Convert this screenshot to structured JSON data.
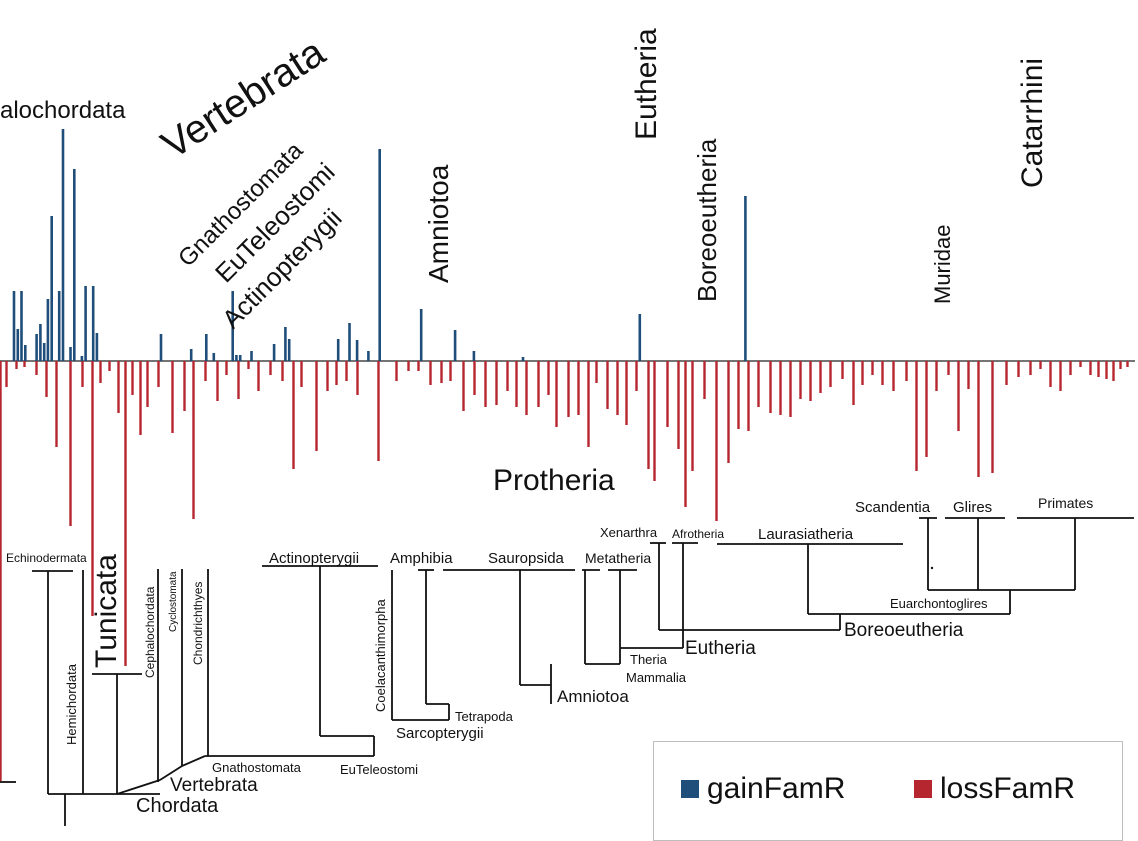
{
  "colors": {
    "gain": "#1f4e7a",
    "loss": "#b5262f",
    "tree": "#111111"
  },
  "legend": {
    "gain_label": "gainFamR",
    "loss_label": "lossFamR"
  },
  "bar_labels": [
    "alochordata",
    "Vertebrata",
    "Gnathostomata",
    "EuTeleostomi",
    "Actinopterygii",
    "Amniotoa",
    "Eutheria",
    "Boreoeutheria",
    "Muridae",
    "Catarrhini",
    "Protheria"
  ],
  "tree_labels": [
    "Echinodermata",
    "Hemichordata",
    "Tunicata",
    "Cephalochordata",
    "Cyclostomata",
    "Chondrichthyes",
    "Gnathostomata",
    "Vertebrata",
    "Chordata",
    "Actinopterygii",
    "Coelacanthimorpha",
    "EuTeleostomi",
    "Sarcopterygii",
    "Amphibia",
    "Tetrapoda",
    "Sauropsida",
    "Amniotoa",
    "Metatheria",
    "Theria",
    "Mammalia",
    "Xenarthra",
    "Afrotheria",
    "Eutheria",
    "Laurasiatheria",
    "Boreoeutheria",
    "Scandentia",
    "Glires",
    "Primates",
    "Euarchontoglires"
  ],
  "chart_data": {
    "type": "bar",
    "series": [
      {
        "name": "gainFamR",
        "values": [
          70,
          32,
          70,
          16,
          0,
          0,
          27,
          37,
          18,
          62,
          145,
          0,
          70,
          232,
          0,
          14,
          192,
          0,
          5,
          75,
          0,
          75,
          28,
          0,
          0,
          0,
          0,
          0,
          0,
          0,
          0,
          0,
          0,
          0,
          0,
          0,
          0,
          0,
          0,
          27,
          0,
          0,
          0,
          0,
          0,
          0,
          0,
          12,
          0,
          0,
          0,
          27,
          0,
          8,
          0,
          0,
          0,
          0,
          70,
          6,
          6,
          0,
          0,
          10,
          0,
          0,
          0,
          0,
          0,
          17,
          0,
          0,
          34,
          22,
          0,
          0,
          0,
          0,
          0,
          0,
          0,
          0,
          0,
          0,
          0,
          0,
          22,
          0,
          0,
          38,
          0,
          21,
          0,
          0,
          10,
          0,
          0,
          212,
          0,
          0,
          0,
          0,
          0,
          0,
          0,
          0,
          0,
          0,
          52,
          0,
          0,
          0,
          0,
          0,
          0,
          0,
          0,
          31,
          0,
          0,
          0,
          0,
          10,
          0,
          0,
          0,
          0,
          0,
          0,
          0,
          0,
          0,
          0,
          0,
          0,
          4,
          0,
          0,
          0,
          0,
          0,
          0,
          0,
          0,
          0,
          0,
          0,
          0,
          0,
          0,
          0,
          0,
          0,
          0,
          0,
          0,
          0,
          0,
          0,
          0,
          0,
          0,
          0,
          0,
          0,
          0,
          47,
          0,
          0,
          0,
          0,
          0,
          0,
          0,
          0,
          0,
          0,
          0,
          0,
          0,
          0,
          0,
          0,
          0,
          0,
          0,
          0,
          0,
          0,
          0,
          0,
          0,
          0,
          0,
          165,
          0,
          0,
          0,
          0,
          0,
          0,
          0,
          0,
          0,
          0,
          0,
          0,
          0,
          0,
          0,
          0,
          0,
          0,
          0,
          0,
          0,
          0,
          0,
          0,
          0,
          0,
          0,
          0,
          0,
          0,
          0,
          0,
          0,
          0,
          0,
          0,
          0,
          0,
          0,
          0,
          0,
          0,
          0,
          0,
          0,
          0,
          0,
          0,
          0,
          0,
          0,
          0,
          0,
          0,
          0,
          0,
          0,
          0,
          0,
          0,
          0,
          0,
          0,
          0,
          0,
          0,
          0,
          0,
          0,
          0
        ]
      }
    ]
  }
}
